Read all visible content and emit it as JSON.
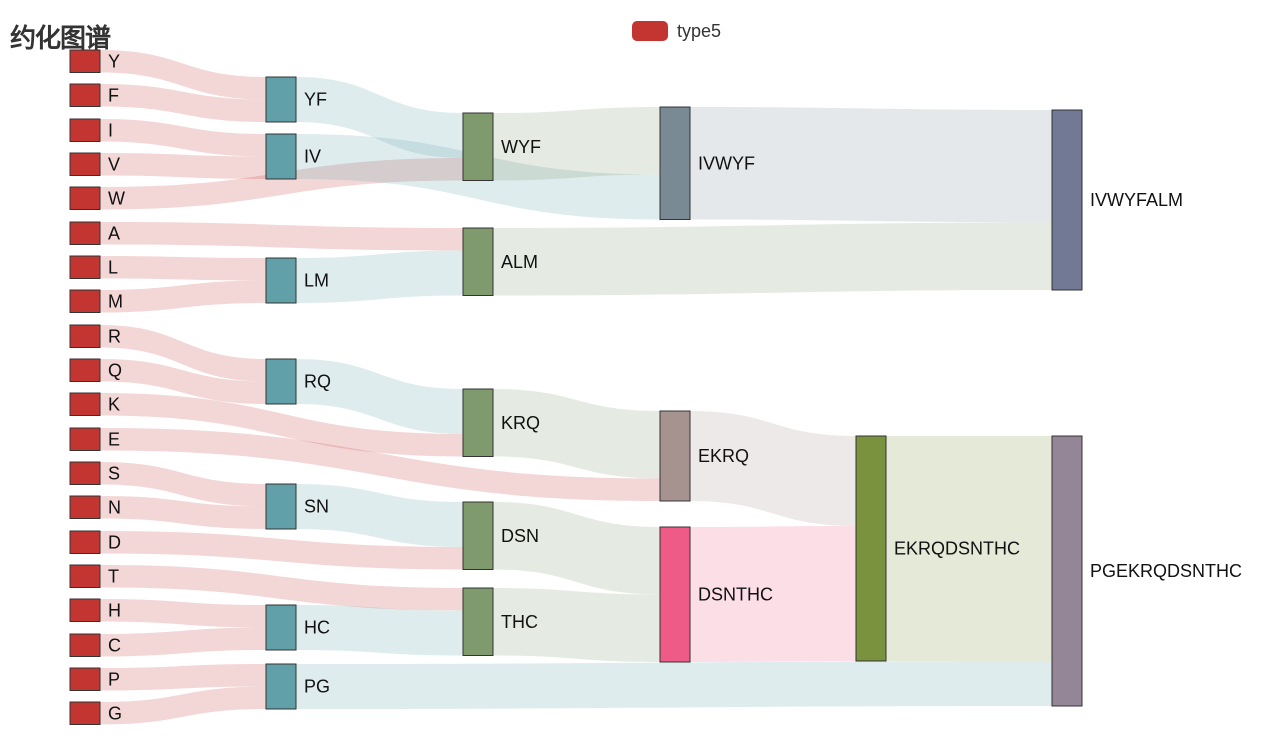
{
  "chart_data": {
    "type": "sankey",
    "title": "约化图谱",
    "legend": {
      "entries": [
        "type5"
      ],
      "placement": "top-center",
      "color": "#c23531"
    },
    "nodes": [
      {
        "name": "Y",
        "level": 0,
        "color": "#c23531"
      },
      {
        "name": "F",
        "level": 0,
        "color": "#c23531"
      },
      {
        "name": "I",
        "level": 0,
        "color": "#c23531"
      },
      {
        "name": "V",
        "level": 0,
        "color": "#c23531"
      },
      {
        "name": "W",
        "level": 0,
        "color": "#c23531"
      },
      {
        "name": "A",
        "level": 0,
        "color": "#c23531"
      },
      {
        "name": "L",
        "level": 0,
        "color": "#c23531"
      },
      {
        "name": "M",
        "level": 0,
        "color": "#c23531"
      },
      {
        "name": "R",
        "level": 0,
        "color": "#c23531"
      },
      {
        "name": "Q",
        "level": 0,
        "color": "#c23531"
      },
      {
        "name": "K",
        "level": 0,
        "color": "#c23531"
      },
      {
        "name": "E",
        "level": 0,
        "color": "#c23531"
      },
      {
        "name": "S",
        "level": 0,
        "color": "#c23531"
      },
      {
        "name": "N",
        "level": 0,
        "color": "#c23531"
      },
      {
        "name": "D",
        "level": 0,
        "color": "#c23531"
      },
      {
        "name": "T",
        "level": 0,
        "color": "#c23531"
      },
      {
        "name": "H",
        "level": 0,
        "color": "#c23531"
      },
      {
        "name": "C",
        "level": 0,
        "color": "#c23531"
      },
      {
        "name": "P",
        "level": 0,
        "color": "#c23531"
      },
      {
        "name": "G",
        "level": 0,
        "color": "#c23531"
      },
      {
        "name": "YF",
        "level": 1,
        "color": "#61a0a8"
      },
      {
        "name": "IV",
        "level": 1,
        "color": "#61a0a8"
      },
      {
        "name": "LM",
        "level": 1,
        "color": "#61a0a8"
      },
      {
        "name": "RQ",
        "level": 1,
        "color": "#61a0a8"
      },
      {
        "name": "SN",
        "level": 1,
        "color": "#61a0a8"
      },
      {
        "name": "HC",
        "level": 1,
        "color": "#61a0a8"
      },
      {
        "name": "PG",
        "level": 1,
        "color": "#61a0a8"
      },
      {
        "name": "WYF",
        "level": 2,
        "color": "#91c7ae",
        "display_color": "#7f9a6c"
      },
      {
        "name": "ALM",
        "level": 2,
        "color": "#7f9a6c"
      },
      {
        "name": "KRQ",
        "level": 2,
        "color": "#7f9a6c"
      },
      {
        "name": "DSN",
        "level": 2,
        "color": "#7f9a6c"
      },
      {
        "name": "THC",
        "level": 2,
        "color": "#7f9a6c"
      },
      {
        "name": "IVWYF",
        "level": 3,
        "color": "#7a8a94"
      },
      {
        "name": "EKRQ",
        "level": 3,
        "color": "#a69390"
      },
      {
        "name": "DSNTHC",
        "level": 3,
        "color": "#ef5b87"
      },
      {
        "name": "EKRQDSNTHC",
        "level": 4,
        "color": "#7a913e"
      },
      {
        "name": "IVWYFALM",
        "level": 5,
        "color": "#727995"
      },
      {
        "name": "PGEKRQDSNTHC",
        "level": 5,
        "color": "#948597"
      }
    ],
    "links": [
      {
        "source": "Y",
        "target": "YF",
        "value": 1
      },
      {
        "source": "F",
        "target": "YF",
        "value": 1
      },
      {
        "source": "I",
        "target": "IV",
        "value": 1
      },
      {
        "source": "V",
        "target": "IV",
        "value": 1
      },
      {
        "source": "W",
        "target": "WYF",
        "value": 1
      },
      {
        "source": "YF",
        "target": "WYF",
        "value": 2
      },
      {
        "source": "A",
        "target": "ALM",
        "value": 1
      },
      {
        "source": "L",
        "target": "LM",
        "value": 1
      },
      {
        "source": "M",
        "target": "LM",
        "value": 1
      },
      {
        "source": "LM",
        "target": "ALM",
        "value": 2
      },
      {
        "source": "R",
        "target": "RQ",
        "value": 1
      },
      {
        "source": "Q",
        "target": "RQ",
        "value": 1
      },
      {
        "source": "K",
        "target": "KRQ",
        "value": 1
      },
      {
        "source": "RQ",
        "target": "KRQ",
        "value": 2
      },
      {
        "source": "E",
        "target": "EKRQ",
        "value": 1
      },
      {
        "source": "KRQ",
        "target": "EKRQ",
        "value": 3
      },
      {
        "source": "S",
        "target": "SN",
        "value": 1
      },
      {
        "source": "N",
        "target": "SN",
        "value": 1
      },
      {
        "source": "D",
        "target": "DSN",
        "value": 1
      },
      {
        "source": "SN",
        "target": "DSN",
        "value": 2
      },
      {
        "source": "T",
        "target": "THC",
        "value": 1
      },
      {
        "source": "H",
        "target": "HC",
        "value": 1
      },
      {
        "source": "C",
        "target": "HC",
        "value": 1
      },
      {
        "source": "HC",
        "target": "THC",
        "value": 2
      },
      {
        "source": "DSN",
        "target": "DSNTHC",
        "value": 3
      },
      {
        "source": "THC",
        "target": "DSNTHC",
        "value": 3
      },
      {
        "source": "EKRQ",
        "target": "EKRQDSNTHC",
        "value": 4
      },
      {
        "source": "DSNTHC",
        "target": "EKRQDSNTHC",
        "value": 6
      },
      {
        "source": "P",
        "target": "PG",
        "value": 1
      },
      {
        "source": "G",
        "target": "PG",
        "value": 1
      },
      {
        "source": "PG",
        "target": "PGEKRQDSNTHC",
        "value": 2
      },
      {
        "source": "EKRQDSNTHC",
        "target": "PGEKRQDSNTHC",
        "value": 10
      },
      {
        "source": "IV",
        "target": "IVWYF",
        "value": 2
      },
      {
        "source": "WYF",
        "target": "IVWYF",
        "value": 3
      },
      {
        "source": "IVWYF",
        "target": "IVWYFALM",
        "value": 5
      },
      {
        "source": "ALM",
        "target": "IVWYFALM",
        "value": 3
      }
    ]
  }
}
